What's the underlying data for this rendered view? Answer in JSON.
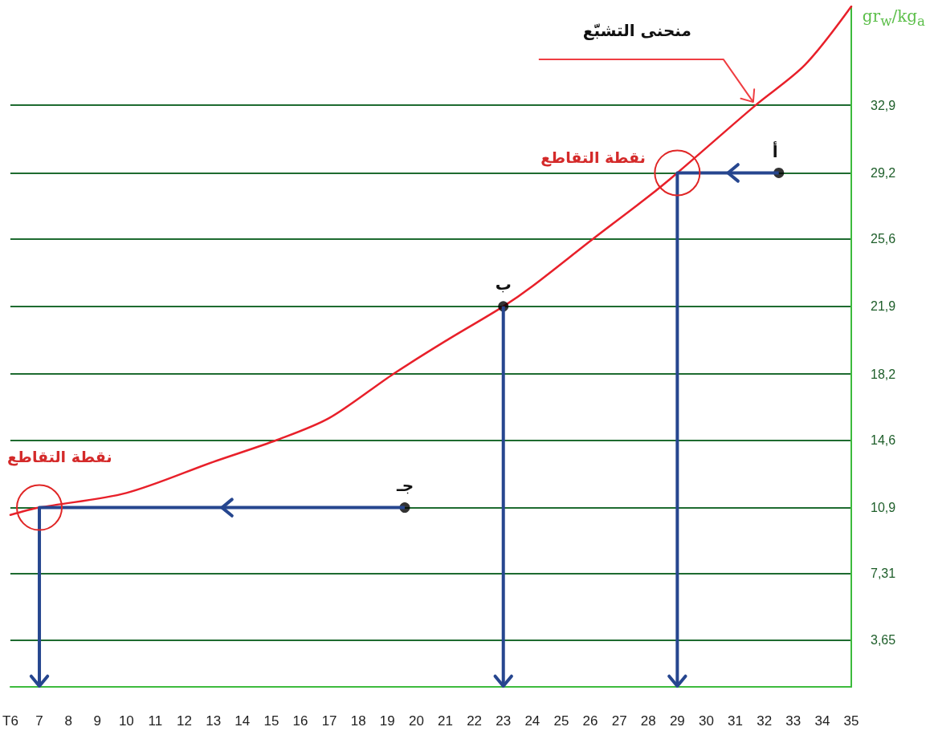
{
  "chart_data": {
    "type": "line",
    "ylabel": "gr$_{w}$/kg$_{a}$",
    "xlim": [
      6,
      35
    ],
    "xticks": [
      {
        "value": 6,
        "label": "T6"
      },
      7,
      8,
      9,
      10,
      11,
      12,
      13,
      14,
      15,
      16,
      17,
      18,
      19,
      20,
      21,
      22,
      23,
      24,
      25,
      26,
      27,
      28,
      29,
      30,
      31,
      32,
      33,
      34,
      35
    ],
    "ylim": [
      1.1,
      38.3
    ],
    "yticks": [
      {
        "value": 3.65,
        "label": "3,65"
      },
      {
        "value": 7.31,
        "label": "7,31"
      },
      {
        "value": 10.9,
        "label": "10,9"
      },
      {
        "value": 14.6,
        "label": "14,6"
      },
      {
        "value": 18.2,
        "label": "18,2"
      },
      {
        "value": 21.9,
        "label": "21,9"
      },
      {
        "value": 25.6,
        "label": "25,6"
      },
      {
        "value": 29.2,
        "label": "29,2"
      },
      {
        "value": 32.9,
        "label": "32,9"
      }
    ],
    "grid": "y",
    "series": [
      {
        "color": "#e8202a",
        "x": [
          6,
          7,
          10,
          13,
          15.2,
          17,
          19.2,
          21,
          23,
          24,
          26.1,
          28,
          29,
          31.7,
          33.4,
          35
        ],
        "values": [
          10.5,
          10.9,
          11.7,
          13.4,
          14.6,
          15.8,
          18.2,
          20.0,
          21.9,
          23.0,
          25.6,
          27.9,
          29.2,
          32.9,
          35.1,
          38.3
        ]
      },
      {
        "type": "scatter",
        "color": "#000000",
        "x": [
          32.5,
          23,
          19.6
        ],
        "values": [
          29.2,
          21.9,
          10.9
        ]
      }
    ],
    "annotations": [
      "منحنى التشبّع",
      {
        "text": "نقطة التقاطع",
        "x": 29,
        "y": 29.2
      },
      {
        "text": "نقطة التقاطع",
        "x": 7,
        "y": 10.9
      },
      {
        "text": "أ",
        "x": 32.5,
        "y": 29.2
      },
      {
        "text": "ب",
        "x": 23,
        "y": 21.9
      },
      {
        "text": "جـ",
        "x": 19.6,
        "y": 10.9
      }
    ]
  }
}
